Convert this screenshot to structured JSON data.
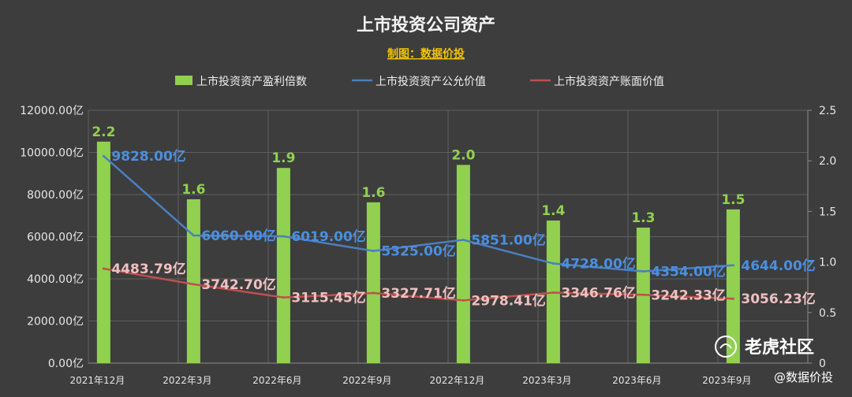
{
  "header": {
    "title": "上市投资公司资产",
    "subtitle": "制图：数据价投"
  },
  "watermark": {
    "brand": "老虎社区",
    "credit": "@数据价投"
  },
  "colors": {
    "bar": "#92d050",
    "fair": "#4a7fc1",
    "book": "#c0504d",
    "background": "#3d3d3d",
    "grid": "#5e5e5e"
  },
  "chart_data": {
    "type": "bar",
    "title": "上市投资公司资产",
    "subtitle": "制图：数据价投",
    "legend_position": "top",
    "grid": true,
    "categories": [
      "2021年12月",
      "2022年3月",
      "2022年6月",
      "2022年9月",
      "2022年12月",
      "2023年3月",
      "2023年6月",
      "2023年9月"
    ],
    "y_axis": {
      "range": [
        0,
        12000
      ],
      "ticks": [
        "0.00亿",
        "2000.00亿",
        "4000.00亿",
        "6000.00亿",
        "8000.00亿",
        "10000.00亿",
        "12000.00亿"
      ]
    },
    "y2_axis": {
      "range": [
        0,
        2.5
      ],
      "ticks": [
        "0",
        "0.5",
        "1.0",
        "1.5",
        "2.0",
        "2.5"
      ]
    },
    "series": [
      {
        "name": "上市投资资产盈利倍数",
        "type": "bar",
        "axis": "right",
        "values": [
          2.19,
          1.62,
          1.93,
          1.59,
          1.96,
          1.41,
          1.34,
          1.52
        ],
        "labels": [
          "2.2",
          "1.6",
          "1.9",
          "1.6",
          "2.0",
          "1.4",
          "1.3",
          "1.5"
        ]
      },
      {
        "name": "上市投资资产公允价值",
        "type": "line",
        "axis": "left",
        "values": [
          9828.0,
          6060.0,
          6019.0,
          5325.0,
          5851.0,
          4728.0,
          4354.0,
          4644.0
        ],
        "labels": [
          "9828.00亿",
          "6060.00亿",
          "6019.00亿",
          "5325.00亿",
          "5851.00亿",
          "4728.00亿",
          "4354.00亿",
          "4644.00亿"
        ]
      },
      {
        "name": "上市投资资产账面价值",
        "type": "line",
        "axis": "left",
        "values": [
          4483.79,
          3742.7,
          3115.45,
          3327.71,
          2978.41,
          3346.76,
          3242.33,
          3056.23
        ],
        "labels": [
          "4483.79亿",
          "3742.70亿",
          "3115.45亿",
          "3327.71亿",
          "2978.41亿",
          "3346.76亿",
          "3242.33亿",
          "3056.23亿"
        ]
      }
    ]
  }
}
